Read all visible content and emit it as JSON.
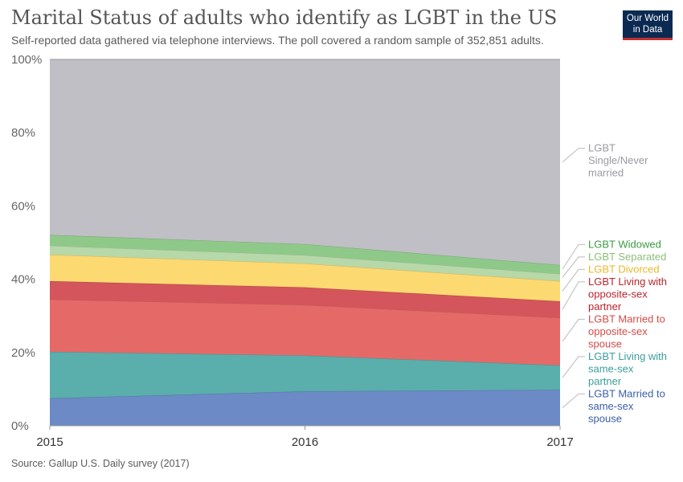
{
  "header": {
    "title": "Marital Status of adults who identify as LGBT in the US",
    "subtitle": "Self-reported data gathered via telephone interviews. The poll covered a random sample of 352,851 adults.",
    "logo_line1": "Our World",
    "logo_line2": "in Data"
  },
  "footer": {
    "source": "Source: Gallup U.S. Daily survey (2017)"
  },
  "chart_data": {
    "type": "area",
    "stacked": true,
    "x": [
      2015,
      2016,
      2017
    ],
    "x_tick_labels": [
      "2015",
      "2016",
      "2017"
    ],
    "y_tick_labels": [
      "0%",
      "20%",
      "40%",
      "60%",
      "80%",
      "100%"
    ],
    "y_ticks": [
      0,
      20,
      40,
      60,
      80,
      100
    ],
    "ylim": [
      0,
      100
    ],
    "grid": true,
    "legend_placement": "right (inline labels)",
    "series": [
      {
        "name": "LGBT Married to same-sex spouse",
        "label_lines": [
          "LGBT Married to",
          "same-sex",
          "spouse"
        ],
        "values": [
          7.5,
          9.4,
          9.8
        ],
        "color": "#6c8ac6",
        "label_color": "#3a5ea8"
      },
      {
        "name": "LGBT Living with same-sex partner",
        "label_lines": [
          "LGBT Living with",
          "same-sex",
          "partner"
        ],
        "values": [
          12.7,
          9.8,
          6.7
        ],
        "color": "#5aaeac",
        "label_color": "#3a9e9c"
      },
      {
        "name": "LGBT Married to opposite-sex spouse",
        "label_lines": [
          "LGBT Married to",
          "opposite-sex",
          "spouse"
        ],
        "values": [
          14.3,
          13.8,
          13.0
        ],
        "color": "#e56a67",
        "label_color": "#d34b47"
      },
      {
        "name": "LGBT Living with opposite-sex partner",
        "label_lines": [
          "LGBT Living with",
          "opposite-sex",
          "partner"
        ],
        "values": [
          5.0,
          4.8,
          4.5
        ],
        "color": "#d4555b",
        "label_color": "#b9242b"
      },
      {
        "name": "LGBT Divorced",
        "label_lines": [
          "LGBT Divorced"
        ],
        "values": [
          7.2,
          6.5,
          5.5
        ],
        "color": "#fdd971",
        "label_color": "#e8b92a"
      },
      {
        "name": "LGBT Separated",
        "label_lines": [
          "LGBT Separated"
        ],
        "values": [
          2.5,
          2.3,
          2.0
        ],
        "color": "#b7d8a8",
        "label_color": "#8cbf78"
      },
      {
        "name": "LGBT Widowed",
        "label_lines": [
          "LGBT Widowed"
        ],
        "values": [
          2.9,
          3.0,
          2.4
        ],
        "color": "#8ec98a",
        "label_color": "#3d9a44"
      },
      {
        "name": "LGBT Single/Never married",
        "label_lines": [
          "LGBT",
          "Single/Never",
          "married"
        ],
        "values": [
          47.9,
          50.4,
          56.1
        ],
        "color": "#c0bfc5",
        "label_color": "#9a9aa0"
      }
    ]
  }
}
